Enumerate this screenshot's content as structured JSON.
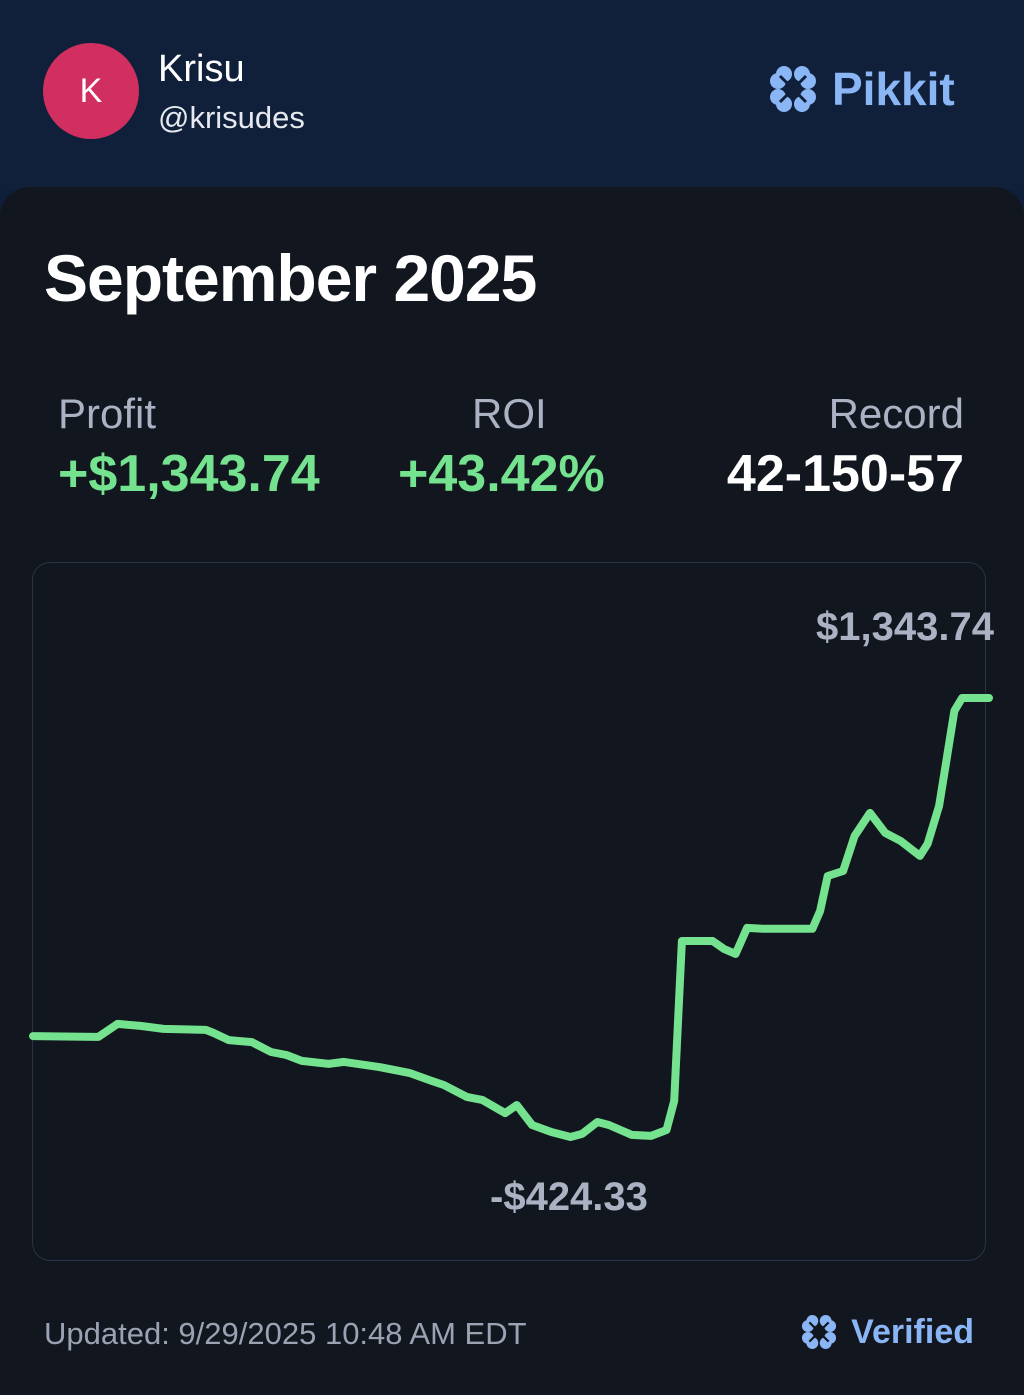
{
  "header": {
    "avatar_initial": "K",
    "name": "Krisu",
    "handle": "@krisudes",
    "brand": "Pikkit",
    "brand_color": "#8ab6f5"
  },
  "card": {
    "title": "September 2025",
    "stats": [
      {
        "label": "Profit",
        "value": "+$1,343.74"
      },
      {
        "label": "ROI",
        "value": "+43.42%"
      },
      {
        "label": "Record",
        "value": "42-150-57"
      }
    ]
  },
  "chart_data": {
    "type": "line",
    "line_color": "#74e28e",
    "max_label": "$1,343.74",
    "min_label": "-$424.33",
    "ylim": [
      -424.33,
      1343.74
    ],
    "x": [
      0,
      16,
      17,
      22,
      28,
      34,
      45,
      47,
      51,
      57,
      62,
      66,
      70,
      77,
      81,
      90,
      98,
      104,
      107,
      113,
      117,
      123,
      126,
      130,
      135,
      140,
      143,
      147,
      150,
      156,
      161,
      165,
      167,
      169,
      177,
      180,
      183,
      186,
      190,
      203,
      205,
      207,
      211,
      214,
      218,
      222,
      226,
      231,
      233,
      236,
      240,
      242,
      249
    ],
    "values": [
      -18,
      -21,
      -21,
      31,
      23,
      11,
      7,
      -5,
      -34,
      -42,
      -82,
      -94,
      -118,
      -130,
      -122,
      -142,
      -166,
      -199,
      -215,
      -263,
      -275,
      -328,
      -296,
      -376,
      -404,
      -424.33,
      -412,
      -364,
      -376,
      -416,
      -420,
      -396,
      -279,
      365,
      365,
      333,
      313,
      418,
      414,
      414,
      486,
      627,
      647,
      788,
      881,
      800,
      768,
      708,
      756,
      909,
      1292,
      1343.74,
      1343.74
    ]
  },
  "footer": {
    "updated": "Updated: 9/29/2025 10:48 AM EDT",
    "verified": "Verified"
  }
}
